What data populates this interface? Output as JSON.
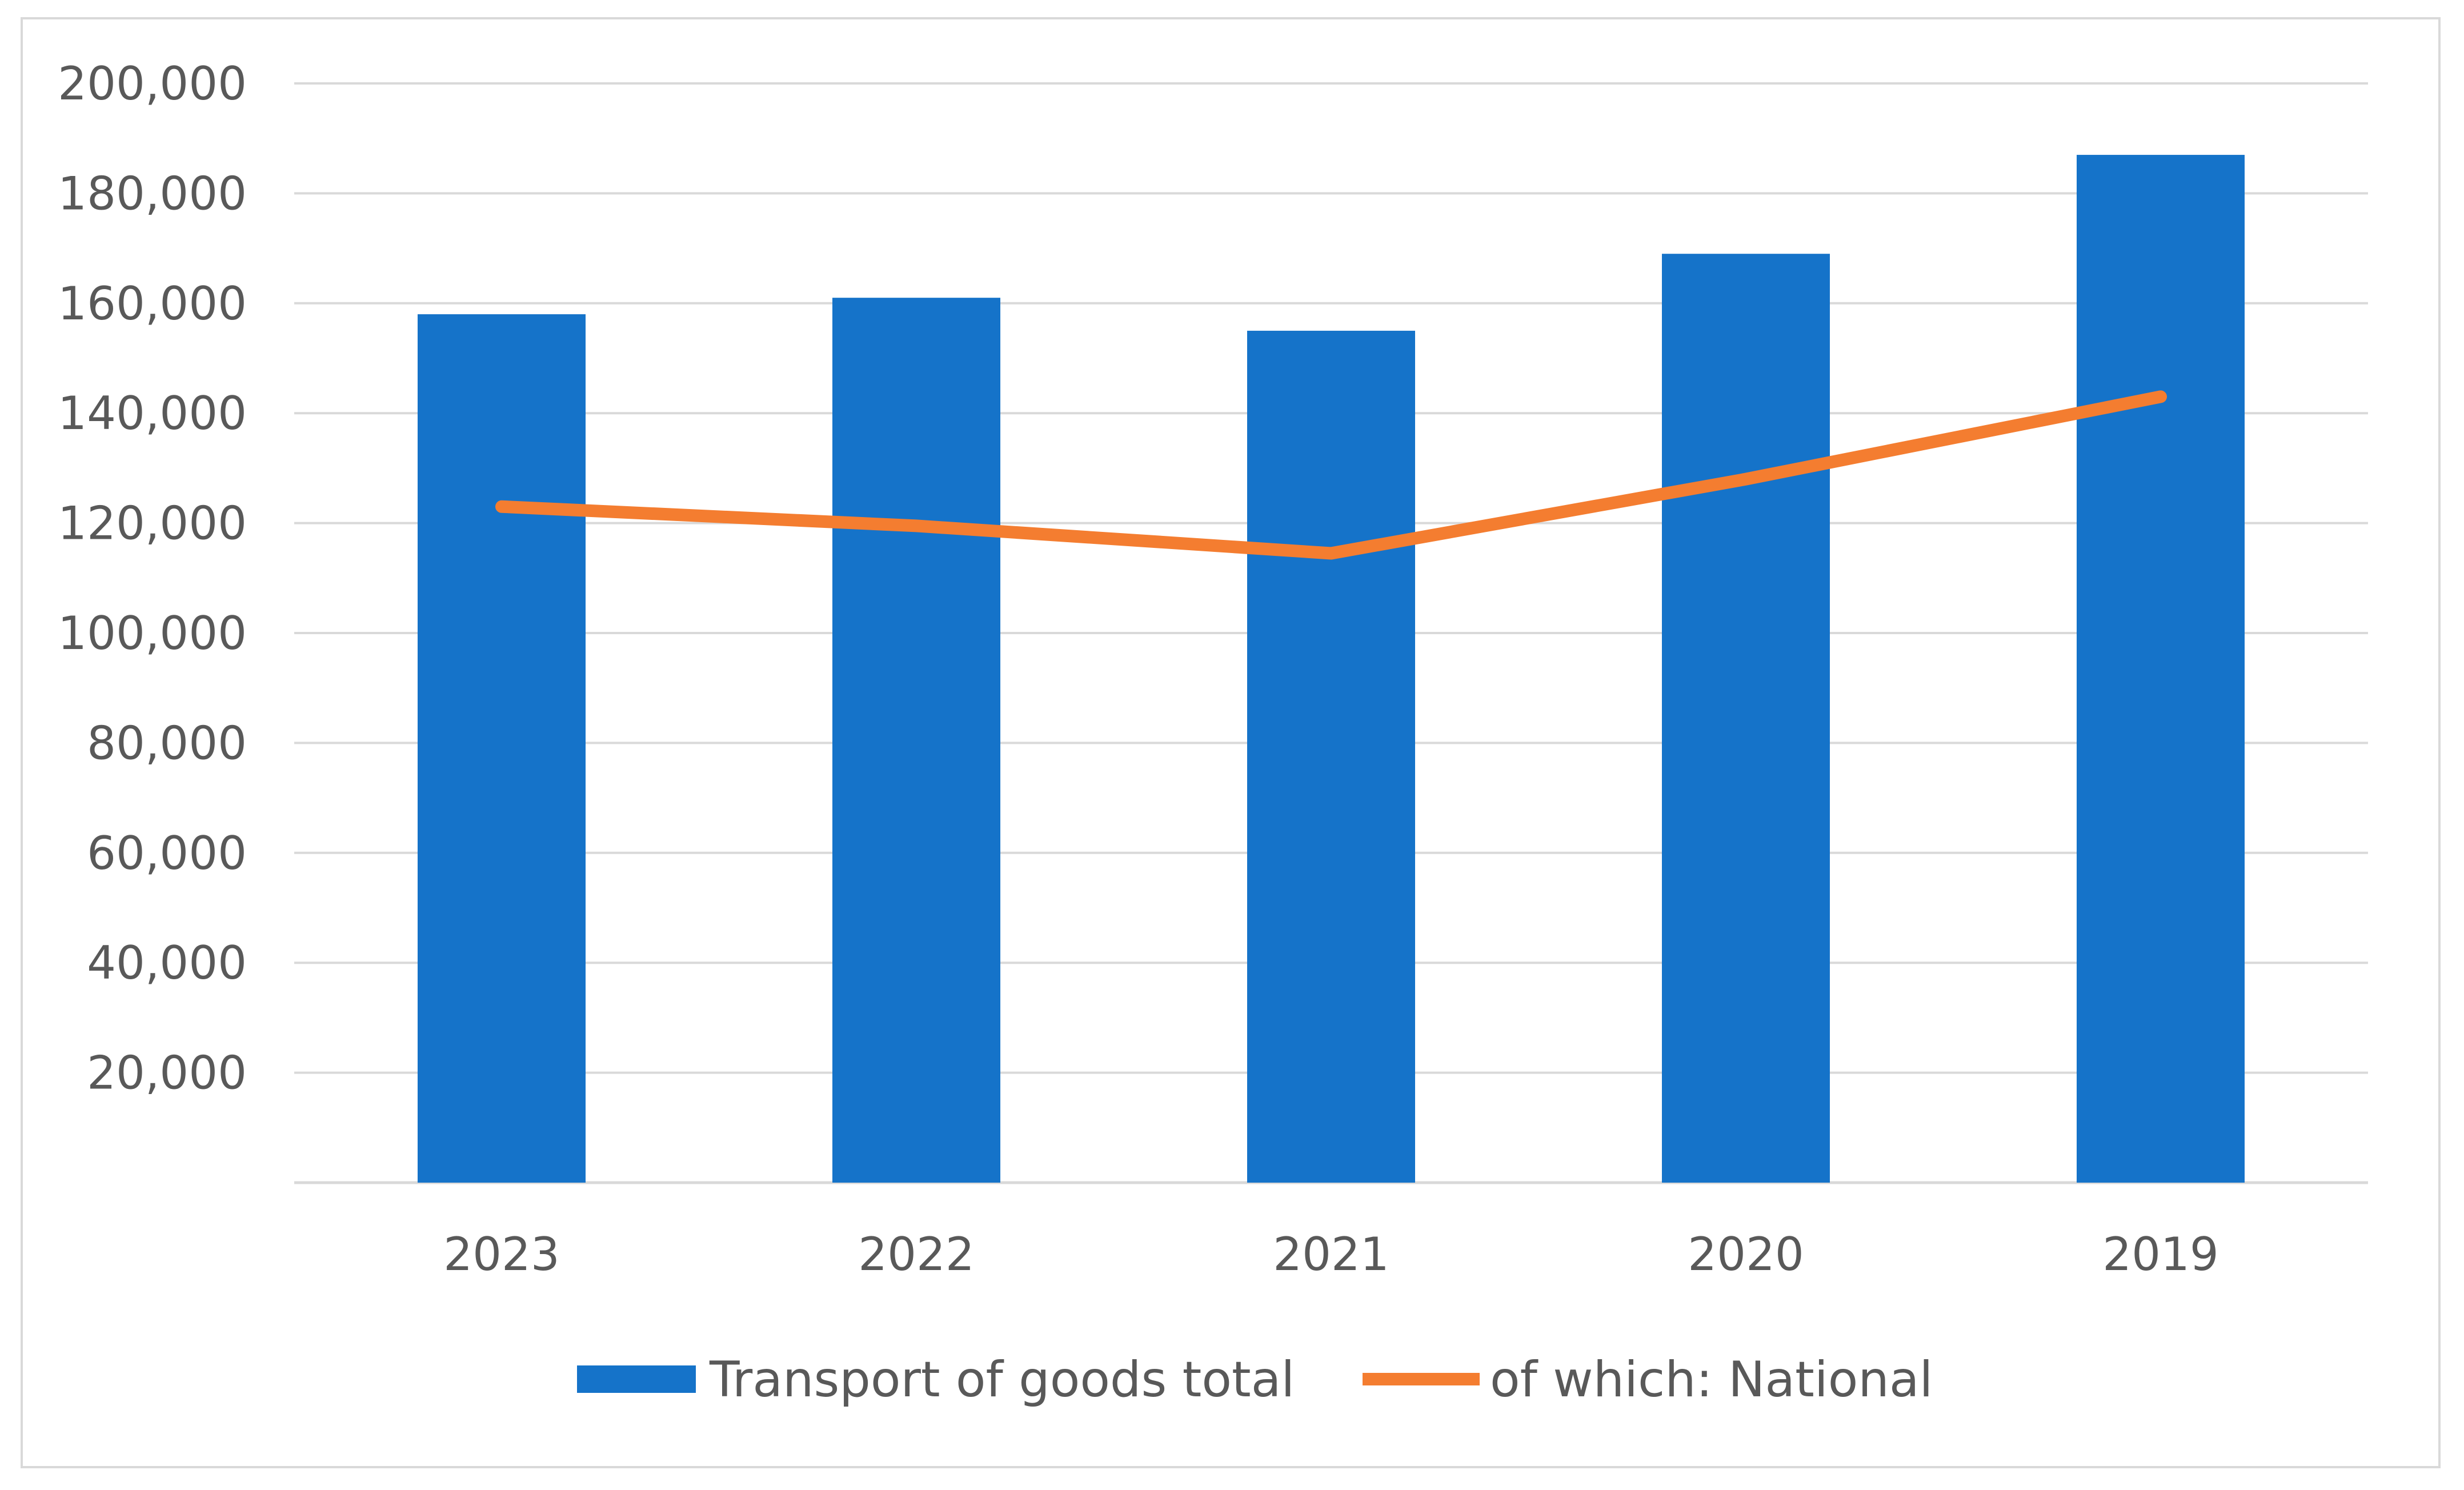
{
  "chart_data": {
    "type": "bar",
    "title": "",
    "xlabel": "",
    "ylabel": "",
    "categories": [
      "2023",
      "2022",
      "2021",
      "2020",
      "2019"
    ],
    "ylim": [
      0,
      200000
    ],
    "yticks": [
      20000,
      40000,
      60000,
      80000,
      100000,
      120000,
      140000,
      160000,
      180000,
      200000
    ],
    "ytick_labels": [
      "20,000",
      "40,000",
      "60,000",
      "80,000",
      "100,000",
      "120,000",
      "140,000",
      "160,000",
      "180,000",
      "200,000"
    ],
    "grid": true,
    "legend_position": "bottom",
    "series": [
      {
        "name": "Transport of goods total",
        "type": "bar",
        "color": "#1573c9",
        "values": [
          158000,
          161000,
          155000,
          169000,
          187000
        ]
      },
      {
        "name": "of which: National",
        "type": "line",
        "color": "#f47d30",
        "values": [
          123000,
          119500,
          114500,
          128000,
          143000
        ]
      }
    ]
  }
}
